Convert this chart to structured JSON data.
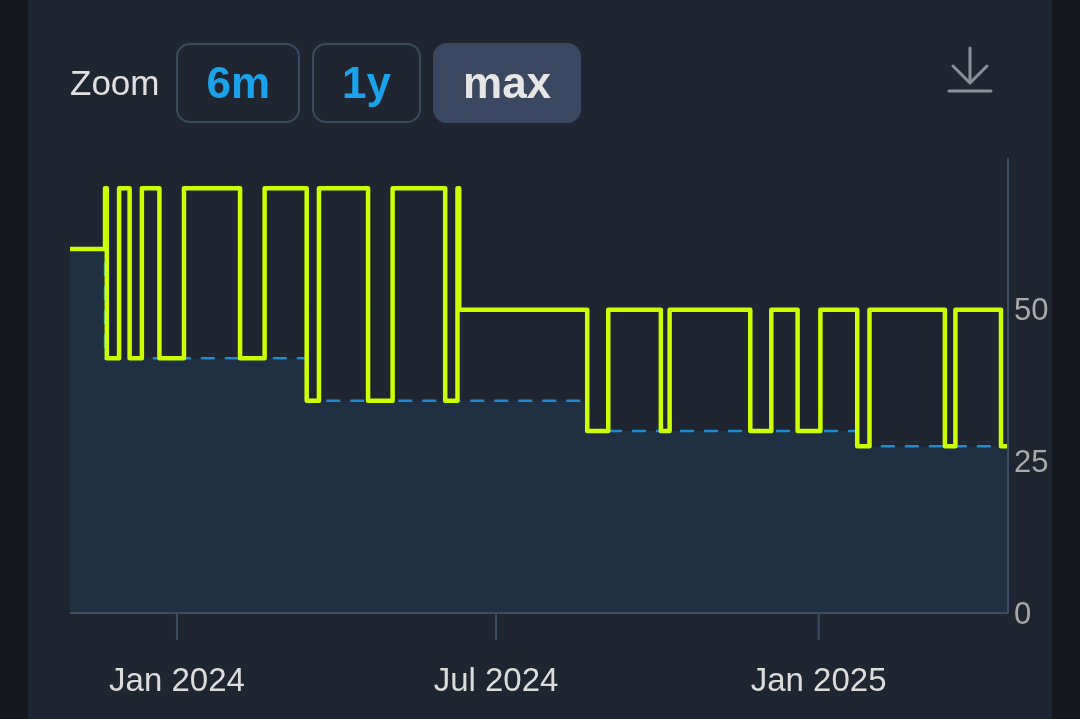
{
  "chart_data": {
    "type": "step",
    "annotations": [
      "Zoom",
      "6m",
      "1y",
      "max"
    ],
    "xlim": [
      "2023-11-01",
      "2025-04-19"
    ],
    "xticks": [
      {
        "value": "2024-01",
        "label": "Jan 2024"
      },
      {
        "value": "2024-07",
        "label": "Jul 2024"
      },
      {
        "value": "2025-01",
        "label": "Jan 2025"
      }
    ],
    "ylim": [
      0,
      75
    ],
    "yticks": [
      0,
      25,
      50
    ],
    "series": [
      {
        "color": "#ccff00",
        "x": [
          "2023-11-01",
          "2023-11-21",
          "2023-11-22",
          "2023-11-29",
          "2023-12-05",
          "2023-12-12",
          "2023-12-22",
          "2024-01-05",
          "2024-02-06",
          "2024-02-20",
          "2024-03-15",
          "2024-03-22",
          "2024-04-19",
          "2024-05-03",
          "2024-06-02",
          "2024-06-09",
          "2024-06-10",
          "2024-08-22",
          "2024-09-03",
          "2024-10-03",
          "2024-10-08",
          "2024-11-23",
          "2024-12-05",
          "2024-12-20",
          "2025-01-02",
          "2025-01-23",
          "2025-01-30",
          "2025-03-14",
          "2025-03-20",
          "2025-04-15",
          "2025-04-19"
        ],
        "values": [
          60,
          70,
          42,
          70,
          42,
          70,
          42,
          70,
          42,
          70,
          35,
          70,
          35,
          70,
          35,
          70,
          50,
          30,
          50,
          30,
          50,
          30,
          50,
          30,
          50,
          27.5,
          50,
          27.5,
          50,
          27.5,
          27.5
        ]
      },
      {
        "type": "area",
        "color": "#1f8ad0",
        "line_style": "dashed",
        "x": [
          "2023-11-01",
          "2023-11-21",
          "2023-11-21",
          "2024-03-15",
          "2024-03-15",
          "2024-08-22",
          "2024-08-22",
          "2025-01-23",
          "2025-01-23",
          "2025-04-19"
        ],
        "values": [
          60,
          60,
          42,
          42,
          35,
          35,
          30,
          30,
          27.5,
          27.5
        ]
      }
    ]
  }
}
